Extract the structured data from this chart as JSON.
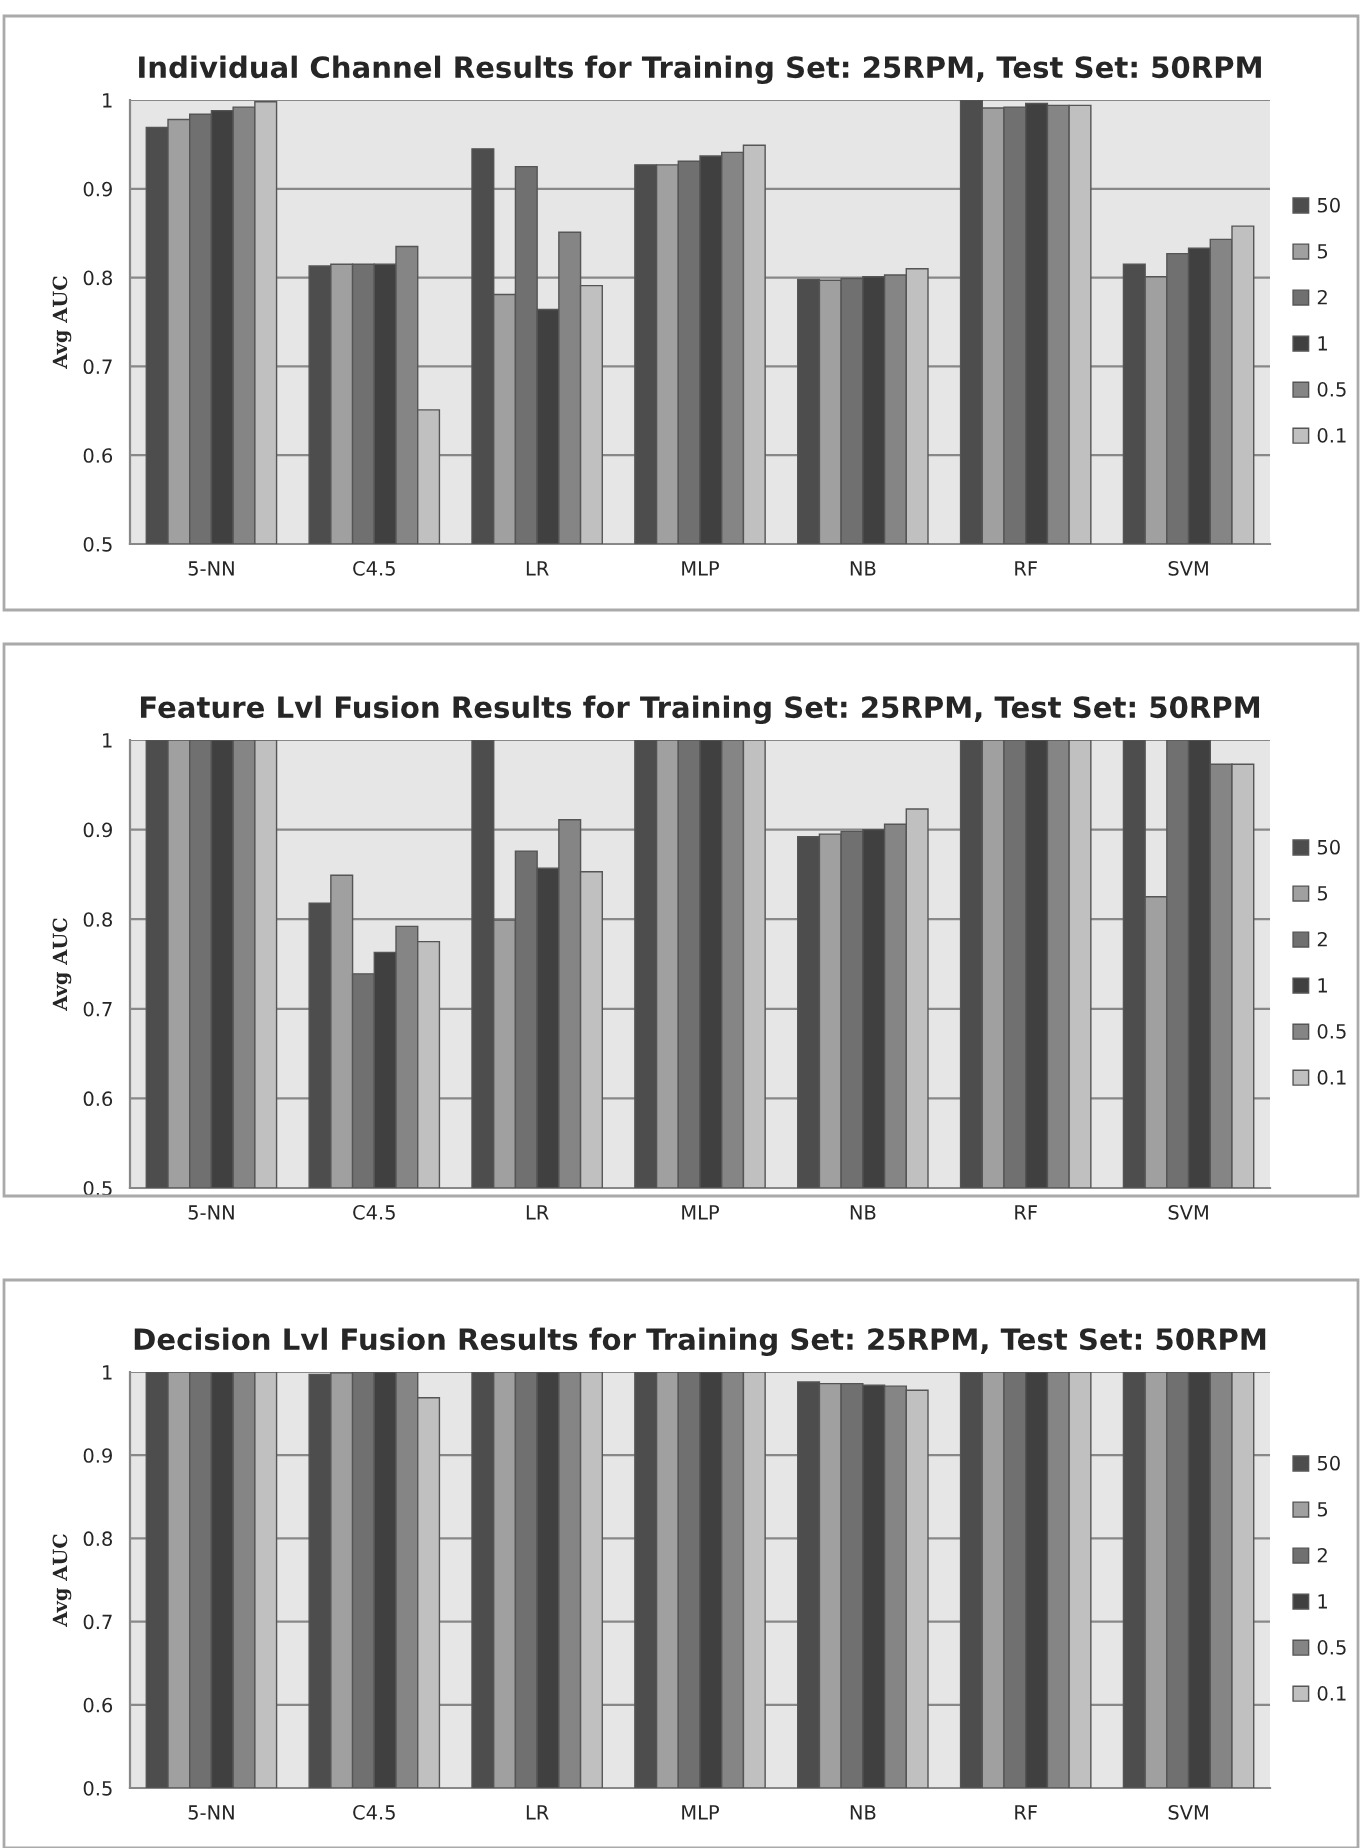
{
  "chart_data": [
    {
      "type": "bar",
      "title": "Individual Channel Results for Training Set: 25RPM, Test Set: 50RPM",
      "ylabel": "Avg AUC",
      "categories": [
        "5-NN",
        "C4.5",
        "LR",
        "MLP",
        "NB",
        "RF",
        "SVM"
      ],
      "ylim": [
        0.5,
        1
      ],
      "yticks": [
        0.5,
        0.6,
        0.7,
        0.8,
        0.9,
        1
      ],
      "grid": "y",
      "legend": "right",
      "series": [
        {
          "name": "50",
          "color": "#4d4d4d",
          "values": [
            0.969,
            0.813,
            0.945,
            0.927,
            0.798,
            1.0,
            0.815
          ]
        },
        {
          "name": "5",
          "color": "#a0a0a0",
          "values": [
            0.978,
            0.815,
            0.781,
            0.927,
            0.797,
            0.991,
            0.801
          ]
        },
        {
          "name": "2",
          "color": "#707070",
          "values": [
            0.984,
            0.815,
            0.925,
            0.931,
            0.799,
            0.992,
            0.827
          ]
        },
        {
          "name": "1",
          "color": "#404040",
          "values": [
            0.988,
            0.815,
            0.764,
            0.937,
            0.801,
            0.996,
            0.833
          ]
        },
        {
          "name": "0.5",
          "color": "#858585",
          "values": [
            0.992,
            0.835,
            0.851,
            0.941,
            0.803,
            0.994,
            0.843
          ]
        },
        {
          "name": "0.1",
          "color": "#c0c0c0",
          "values": [
            0.998,
            0.651,
            0.791,
            0.949,
            0.81,
            0.994,
            0.858
          ]
        }
      ]
    },
    {
      "type": "bar",
      "title": "Feature Lvl Fusion Results for Training Set: 25RPM, Test Set: 50RPM",
      "ylabel": "Avg AUC",
      "categories": [
        "5-NN",
        "C4.5",
        "LR",
        "MLP",
        "NB",
        "RF",
        "SVM"
      ],
      "ylim": [
        0.5,
        1
      ],
      "yticks": [
        0.5,
        0.6,
        0.7,
        0.8,
        0.9,
        1
      ],
      "grid": "y",
      "legend": "right",
      "series": [
        {
          "name": "50",
          "color": "#4d4d4d",
          "values": [
            1.0,
            0.818,
            1.0,
            1.0,
            0.892,
            1.0,
            1.0
          ]
        },
        {
          "name": "5",
          "color": "#a0a0a0",
          "values": [
            1.0,
            0.849,
            0.799,
            1.0,
            0.895,
            1.0,
            0.825
          ]
        },
        {
          "name": "2",
          "color": "#707070",
          "values": [
            1.0,
            0.739,
            0.876,
            1.0,
            0.898,
            1.0,
            1.0
          ]
        },
        {
          "name": "1",
          "color": "#404040",
          "values": [
            1.0,
            0.763,
            0.857,
            1.0,
            0.9,
            1.0,
            1.0
          ]
        },
        {
          "name": "0.5",
          "color": "#858585",
          "values": [
            1.0,
            0.792,
            0.911,
            1.0,
            0.906,
            1.0,
            0.973
          ]
        },
        {
          "name": "0.1",
          "color": "#c0c0c0",
          "values": [
            1.0,
            0.775,
            0.853,
            1.0,
            0.923,
            1.0,
            0.973
          ]
        }
      ]
    },
    {
      "type": "bar",
      "title": "Decision Lvl Fusion Results for Training Set: 25RPM, Test Set: 50RPM",
      "ylabel": "Avg AUC",
      "categories": [
        "5-NN",
        "C4.5",
        "LR",
        "MLP",
        "NB",
        "RF",
        "SVM"
      ],
      "ylim": [
        0.5,
        1
      ],
      "yticks": [
        0.5,
        0.6,
        0.7,
        0.8,
        0.9,
        1
      ],
      "grid": "y",
      "legend": "right",
      "series": [
        {
          "name": "50",
          "color": "#4d4d4d",
          "values": [
            1.0,
            0.997,
            1.0,
            1.0,
            0.988,
            1.0,
            1.0
          ]
        },
        {
          "name": "5",
          "color": "#a0a0a0",
          "values": [
            1.0,
            0.999,
            1.0,
            1.0,
            0.986,
            1.0,
            1.0
          ]
        },
        {
          "name": "2",
          "color": "#707070",
          "values": [
            1.0,
            1.0,
            1.0,
            1.0,
            0.986,
            1.0,
            1.0
          ]
        },
        {
          "name": "1",
          "color": "#404040",
          "values": [
            1.0,
            1.0,
            1.0,
            1.0,
            0.984,
            1.0,
            1.0
          ]
        },
        {
          "name": "0.5",
          "color": "#858585",
          "values": [
            1.0,
            1.0,
            1.0,
            1.0,
            0.983,
            1.0,
            1.0
          ]
        },
        {
          "name": "0.1",
          "color": "#c0c0c0",
          "values": [
            1.0,
            0.969,
            1.0,
            1.0,
            0.978,
            1.0,
            1.0
          ]
        }
      ]
    }
  ]
}
